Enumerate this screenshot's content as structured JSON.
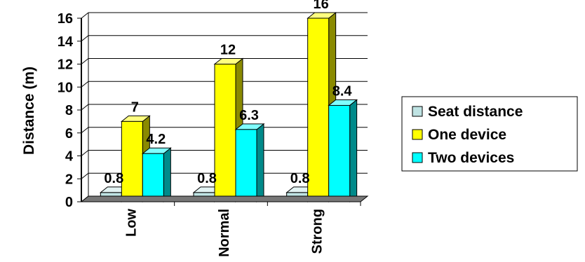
{
  "chart_data": {
    "type": "bar",
    "three_d": true,
    "categories": [
      "Low",
      "Normal",
      "Strong"
    ],
    "series": [
      {
        "name": "Seat distance",
        "values": [
          0.8,
          0.8,
          0.8
        ],
        "color": "#bfe3e3",
        "side_color": "#6fa0a0",
        "top_color": "#e2f3f3"
      },
      {
        "name": "One device",
        "values": [
          7,
          12,
          16
        ],
        "color": "#ffff00",
        "side_color": "#8a8a00",
        "top_color": "#ffff80"
      },
      {
        "name": "Two devices",
        "values": [
          4.2,
          6.3,
          8.4
        ],
        "color": "#00ffff",
        "side_color": "#008a8a",
        "top_color": "#80ffff"
      }
    ],
    "data_labels": [
      [
        "0.8",
        "0.8",
        "0.8"
      ],
      [
        "7",
        "12",
        "16"
      ],
      [
        "4.2",
        "6.3",
        "8.4"
      ]
    ],
    "ylabel": "Distance (m)",
    "xlabel": "",
    "ylim": [
      0,
      16
    ],
    "yticks": [
      "0",
      "2",
      "4",
      "6",
      "8",
      "10",
      "12",
      "14",
      "16"
    ],
    "grid": true,
    "legend": "right"
  }
}
